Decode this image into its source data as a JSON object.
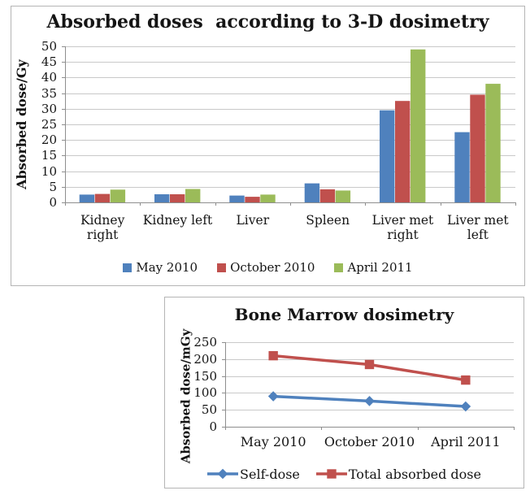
{
  "chart_data": [
    {
      "type": "bar",
      "title": "Absorbed doses  according to 3-D dosimetry",
      "ylabel": "Absorbed dose/Gy",
      "categories": [
        "Kidney right",
        "Kidney left",
        "Liver",
        "Spleen",
        "Liver met right",
        "Liver met left"
      ],
      "series": [
        {
          "name": "May 2010",
          "color": "#4F81BD",
          "values": [
            2.5,
            2.6,
            2.2,
            6.1,
            29.5,
            22.5
          ]
        },
        {
          "name": "October 2010",
          "color": "#C0504D",
          "values": [
            2.7,
            2.6,
            1.8,
            4.2,
            32.5,
            34.5
          ]
        },
        {
          "name": "April 2011",
          "color": "#9BBB59",
          "values": [
            4.1,
            4.3,
            2.5,
            3.8,
            49.0,
            38.0
          ]
        }
      ],
      "ylim": [
        0,
        50
      ],
      "ytick_step": 5,
      "grid": true,
      "legend_position": "bottom"
    },
    {
      "type": "line",
      "title": "Bone Marrow dosimetry",
      "ylabel": "Absorbed dose/mGy",
      "categories": [
        "May 2010",
        "October 2010",
        "April 2011"
      ],
      "series": [
        {
          "name": "Self-dose",
          "color": "#4F81BD",
          "marker": "diamond",
          "values": [
            90,
            76,
            60
          ]
        },
        {
          "name": "Total absorbed dose",
          "color": "#C0504D",
          "marker": "square",
          "values": [
            210,
            184,
            138
          ]
        }
      ],
      "ylim": [
        0,
        250
      ],
      "ytick_step": 50,
      "grid": true,
      "legend_position": "bottom"
    }
  ],
  "colors": {
    "grid": "#c9c9c9",
    "axis": "#8e8e8e",
    "panel_border": "#b5b5b5"
  }
}
